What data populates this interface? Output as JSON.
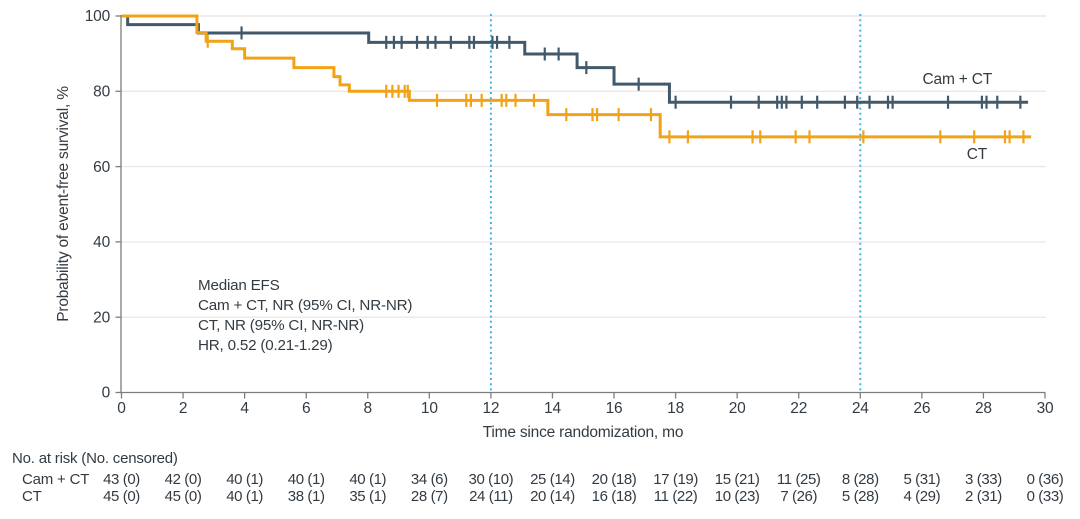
{
  "figure_text_color": "#333b42",
  "grid_color": "#e9e9e9",
  "axis_color": "#7d7d7d",
  "chart_data": {
    "type": "line",
    "subtype": "kaplan-meier-step",
    "title": "",
    "xlabel": "Time since randomization, mo",
    "ylabel": "Probability of event-free survival, %",
    "xlim": [
      0,
      30
    ],
    "ylim": [
      0,
      100
    ],
    "x_ticks": [
      0,
      2,
      4,
      6,
      8,
      10,
      12,
      14,
      16,
      18,
      20,
      22,
      24,
      26,
      28,
      30
    ],
    "x_tick_labels": [
      "0",
      "2",
      "4",
      "6",
      "8",
      "10",
      "12",
      "14",
      "16",
      "18",
      "20",
      "22",
      "24",
      "26",
      "28",
      "30"
    ],
    "y_ticks": [
      100,
      80,
      60,
      40,
      20,
      0
    ],
    "y_tick_labels": [
      "100",
      "80",
      "60",
      "40",
      "20",
      "0"
    ],
    "grid": "horizontal-only",
    "reference_lines_x": [
      12,
      24
    ],
    "reference_line_color": "#3fb5e6",
    "series": [
      {
        "name": "Cam + CT",
        "color": "#42596b",
        "steps": [
          [
            0,
            100
          ],
          [
            0.2,
            97.7
          ],
          [
            2.5,
            95.5
          ],
          [
            8.03,
            93.0
          ],
          [
            13.1,
            89.9
          ],
          [
            14.8,
            86.3
          ],
          [
            16.0,
            81.9
          ],
          [
            17.8,
            77.1
          ]
        ],
        "end": 29.45,
        "censors": [
          [
            3.9,
            95.5
          ],
          [
            8.6,
            93.0
          ],
          [
            8.85,
            93.0
          ],
          [
            9.1,
            93.0
          ],
          [
            9.6,
            93.0
          ],
          [
            9.95,
            93.0
          ],
          [
            10.2,
            93.0
          ],
          [
            10.7,
            93.0
          ],
          [
            11.3,
            93.0
          ],
          [
            11.45,
            93.0
          ],
          [
            12.05,
            93.0
          ],
          [
            12.2,
            93.0
          ],
          [
            12.6,
            93.0
          ],
          [
            13.75,
            89.9
          ],
          [
            14.2,
            89.9
          ],
          [
            15.1,
            86.3
          ],
          [
            16.8,
            81.9
          ],
          [
            18.0,
            77.1
          ],
          [
            19.8,
            77.1
          ],
          [
            20.7,
            77.1
          ],
          [
            21.3,
            77.1
          ],
          [
            21.45,
            77.1
          ],
          [
            21.6,
            77.1
          ],
          [
            22.1,
            77.1
          ],
          [
            22.6,
            77.1
          ],
          [
            23.5,
            77.1
          ],
          [
            23.9,
            77.1
          ],
          [
            24.3,
            77.1
          ],
          [
            24.9,
            77.1
          ],
          [
            25.05,
            77.1
          ],
          [
            26.85,
            77.1
          ],
          [
            27.95,
            77.1
          ],
          [
            28.1,
            77.1
          ],
          [
            28.45,
            77.1
          ],
          [
            29.2,
            77.1
          ]
        ]
      },
      {
        "name": "CT",
        "color": "#f2a216",
        "steps": [
          [
            0,
            100
          ],
          [
            2.45,
            95.6
          ],
          [
            2.75,
            93.3
          ],
          [
            3.6,
            91.3
          ],
          [
            4.0,
            88.8
          ],
          [
            5.6,
            86.3
          ],
          [
            6.9,
            83.9
          ],
          [
            7.1,
            81.7
          ],
          [
            7.4,
            80.0
          ],
          [
            9.35,
            77.6
          ],
          [
            13.85,
            73.8
          ],
          [
            17.5,
            67.9
          ]
        ],
        "end": 29.55,
        "censors": [
          [
            2.8,
            93.3
          ],
          [
            8.6,
            80.0
          ],
          [
            8.8,
            80.0
          ],
          [
            9.0,
            80.0
          ],
          [
            9.2,
            80.0
          ],
          [
            9.3,
            80.0
          ],
          [
            10.25,
            77.6
          ],
          [
            11.2,
            77.6
          ],
          [
            11.35,
            77.6
          ],
          [
            11.7,
            77.6
          ],
          [
            12.35,
            77.6
          ],
          [
            12.5,
            77.6
          ],
          [
            12.8,
            77.6
          ],
          [
            13.4,
            77.6
          ],
          [
            14.45,
            73.8
          ],
          [
            15.3,
            73.8
          ],
          [
            15.45,
            73.8
          ],
          [
            16.15,
            73.8
          ],
          [
            17.2,
            73.8
          ],
          [
            17.8,
            67.9
          ],
          [
            18.4,
            67.9
          ],
          [
            20.5,
            67.9
          ],
          [
            20.75,
            67.9
          ],
          [
            21.9,
            67.9
          ],
          [
            22.35,
            67.9
          ],
          [
            24.1,
            67.9
          ],
          [
            26.6,
            67.9
          ],
          [
            27.7,
            67.9
          ],
          [
            28.7,
            67.9
          ],
          [
            28.85,
            67.9
          ],
          [
            29.3,
            67.9
          ]
        ]
      }
    ],
    "legend": {
      "position": "inline-right",
      "labels": [
        "Cam + CT",
        "CT"
      ]
    },
    "annotation": [
      "Median EFS",
      "Cam + CT, NR (95% CI, NR-NR)",
      "CT, NR (95% CI, NR-NR)",
      "HR, 0.52 (0.21-1.29)"
    ]
  },
  "risk_table": {
    "header": "No. at risk (No. censored)",
    "time_points": [
      0,
      2,
      4,
      6,
      8,
      10,
      12,
      14,
      16,
      18,
      20,
      22,
      24,
      26,
      28,
      30
    ],
    "rows": [
      {
        "label": "Cam + CT",
        "values": [
          "43 (0)",
          "42 (0)",
          "40 (1)",
          "40 (1)",
          "40 (1)",
          "34 (6)",
          "30 (10)",
          "25 (14)",
          "20 (18)",
          "17 (19)",
          "15 (21)",
          "11 (25)",
          "8 (28)",
          "5 (31)",
          "3 (33)",
          "0 (36)"
        ]
      },
      {
        "label": "CT",
        "values": [
          "45 (0)",
          "45 (0)",
          "40 (1)",
          "38 (1)",
          "35 (1)",
          "28 (7)",
          "24 (11)",
          "20 (14)",
          "16 (18)",
          "11 (22)",
          "10 (23)",
          "7 (26)",
          "5 (28)",
          "4 (29)",
          "2 (31)",
          "0 (33)"
        ]
      }
    ]
  }
}
